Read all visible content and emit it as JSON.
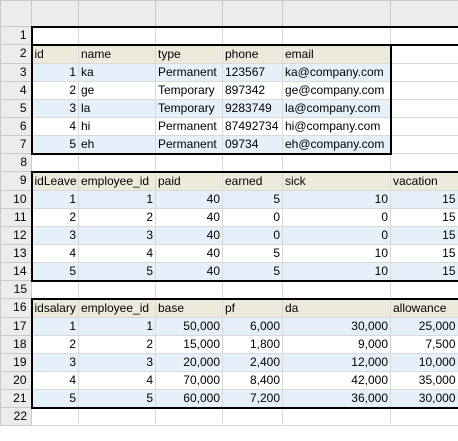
{
  "employees": {
    "headers": [
      "id",
      "name",
      "type",
      "phone",
      "email"
    ],
    "rows": [
      [
        "1",
        "ka",
        "Permanent",
        "123567",
        "ka@company.com"
      ],
      [
        "2",
        "ge",
        "Temporary",
        "897342",
        "ge@company.com"
      ],
      [
        "3",
        "la",
        "Temporary",
        "9283749",
        "la@company.com"
      ],
      [
        "4",
        "hi",
        "Permanent",
        "87492734",
        "hi@company.com"
      ],
      [
        "5",
        "eh",
        "Permanent",
        "09734",
        "eh@company.com"
      ]
    ]
  },
  "leave": {
    "headers": [
      "idLeave",
      "employee_id",
      "paid",
      "earned",
      "sick",
      "vacation"
    ],
    "rows": [
      [
        "1",
        "1",
        "40",
        "5",
        "10",
        "15"
      ],
      [
        "2",
        "2",
        "40",
        "0",
        "0",
        "15"
      ],
      [
        "3",
        "3",
        "40",
        "0",
        "0",
        "15"
      ],
      [
        "4",
        "4",
        "40",
        "5",
        "10",
        "15"
      ],
      [
        "5",
        "5",
        "40",
        "5",
        "10",
        "15"
      ]
    ]
  },
  "salary": {
    "headers": [
      "idsalary",
      "employee_id",
      "base",
      "pf",
      "da",
      "allowance"
    ],
    "rows": [
      [
        "1",
        "1",
        "50,000",
        "6,000",
        "30,000",
        "25,000"
      ],
      [
        "2",
        "2",
        "15,000",
        "1,800",
        "9,000",
        "7,500"
      ],
      [
        "3",
        "3",
        "20,000",
        "2,400",
        "12,000",
        "10,000"
      ],
      [
        "4",
        "4",
        "70,000",
        "8,400",
        "42,000",
        "35,000"
      ],
      [
        "5",
        "5",
        "60,000",
        "7,200",
        "36,000",
        "30,000"
      ]
    ]
  },
  "row_numbers": [
    "1",
    "2",
    "3",
    "4",
    "5",
    "6",
    "7",
    "8",
    "9",
    "10",
    "11",
    "12",
    "13",
    "14",
    "15",
    "16",
    "17",
    "18",
    "19",
    "20",
    "21",
    "22"
  ],
  "colors": {
    "header_fill": "#eeeadb",
    "band_fill": "#e6f0fa",
    "gridline": "#d9d9d9",
    "headings_bg": "#ececec"
  }
}
